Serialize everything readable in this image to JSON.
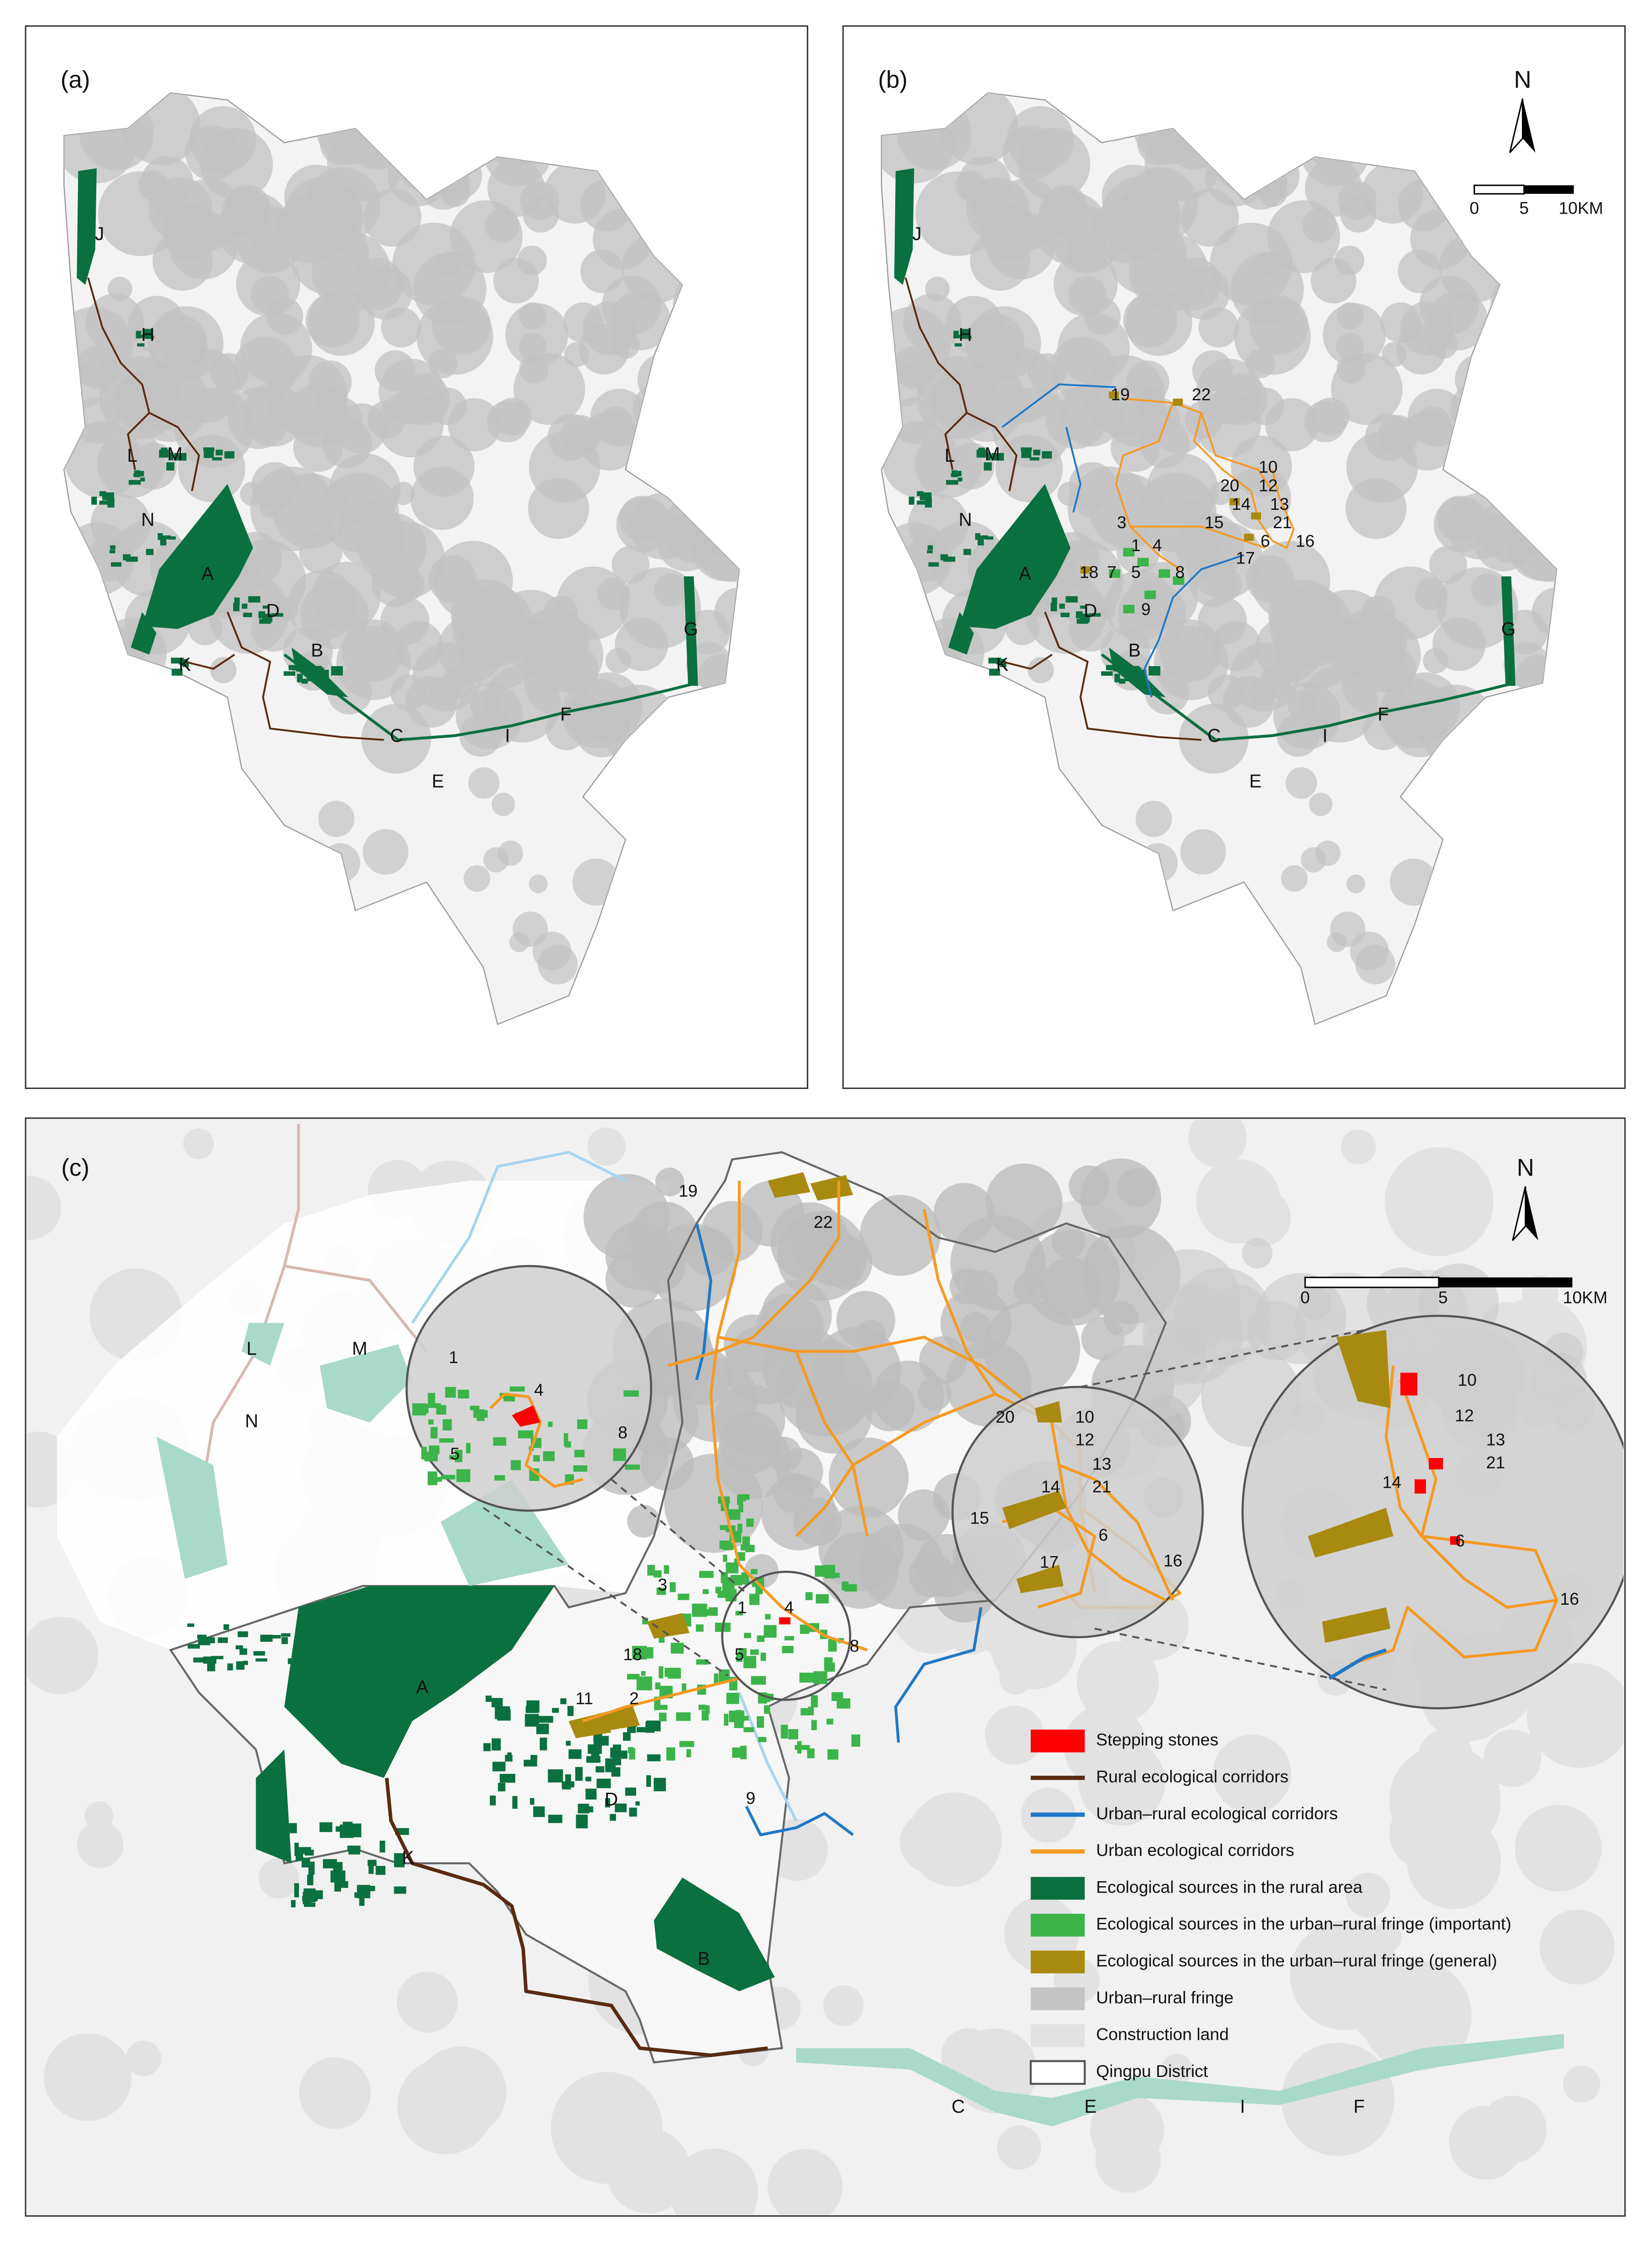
{
  "panels": [
    "(a)",
    "(b)",
    "(c)"
  ],
  "site_labels": [
    "J",
    "H",
    "L",
    "M",
    "N",
    "A",
    "D",
    "B",
    "K",
    "C",
    "E",
    "I",
    "F",
    "G"
  ],
  "stepping_stones": [
    "1",
    "2",
    "3",
    "4",
    "5",
    "6",
    "7",
    "8",
    "9",
    "10",
    "11",
    "12",
    "13",
    "14",
    "15",
    "16",
    "17",
    "18",
    "19",
    "20",
    "21",
    "22"
  ],
  "north": "N",
  "scale_bar": {
    "ticks": [
      "0",
      "5",
      "10KM"
    ]
  },
  "legend": [
    "Stepping stones",
    "Rural ecological corridors",
    "Urban–rural ecological corridors",
    "Urban ecological corridors",
    "Ecological sources in the rural area",
    "Ecological sources in the urban–rural fringe (important)",
    "Ecological sources in the urban–rural fringe (general)",
    "Urban–rural fringe",
    "Construction land",
    "Qingpu District"
  ]
}
